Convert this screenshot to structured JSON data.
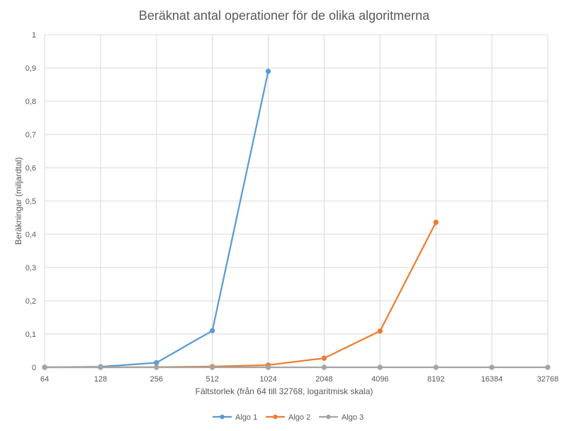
{
  "chart_data": {
    "type": "line",
    "title": "Beräknat antal operationer för de olika algoritmerna",
    "xlabel": "Fältstorlek (från 64 till 32768, logaritmisk skala)",
    "ylabel": "Beräkningar (miljardtal)",
    "categories": [
      "64",
      "128",
      "256",
      "512",
      "1024",
      "2048",
      "4096",
      "8192",
      "16384",
      "32768"
    ],
    "y_ticks": [
      "0",
      "0,1",
      "0,2",
      "0,3",
      "0,4",
      "0,5",
      "0,6",
      "0,7",
      "0,8",
      "0,9",
      "1"
    ],
    "ylim": [
      0,
      1
    ],
    "grid": true,
    "legend_position": "bottom",
    "series": [
      {
        "name": "Algo 1",
        "color": "#5B9BD5",
        "values": [
          0,
          0.0017,
          0.0138,
          0.11,
          0.89,
          null,
          null,
          null,
          null,
          null
        ]
      },
      {
        "name": "Algo 2",
        "color": "#ED7D31",
        "values": [
          0,
          0.0001,
          0.0005,
          0.0023,
          0.0067,
          0.0275,
          0.109,
          0.436,
          null,
          null
        ]
      },
      {
        "name": "Algo 3",
        "color": "#A5A5A5",
        "values": [
          0,
          0,
          0,
          0,
          0,
          0,
          0,
          0,
          0,
          0
        ]
      }
    ]
  }
}
